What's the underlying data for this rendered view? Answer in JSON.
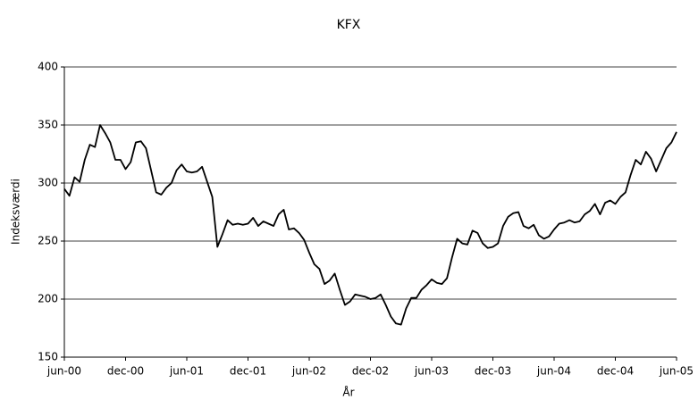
{
  "chart_data": {
    "type": "line",
    "title": "KFX",
    "x_label": "År",
    "y_label": "Indeksværdi",
    "categories": [
      "jun-00",
      null,
      null,
      null,
      null,
      null,
      null,
      null,
      null,
      null,
      null,
      null,
      "dec-00",
      null,
      null,
      null,
      null,
      null,
      null,
      null,
      null,
      null,
      null,
      null,
      "jun-01",
      null,
      null,
      null,
      null,
      null,
      null,
      null,
      null,
      null,
      null,
      null,
      "dec-01",
      null,
      null,
      null,
      null,
      null,
      null,
      null,
      null,
      null,
      null,
      null,
      "jun-02",
      null,
      null,
      null,
      null,
      null,
      null,
      null,
      null,
      null,
      null,
      null,
      "dec-02",
      null,
      null,
      null,
      null,
      null,
      null,
      null,
      null,
      null,
      null,
      null,
      "jun-03",
      null,
      null,
      null,
      null,
      null,
      null,
      null,
      null,
      null,
      null,
      null,
      "dec-03",
      null,
      null,
      null,
      null,
      null,
      null,
      null,
      null,
      null,
      null,
      null,
      "jun-04",
      null,
      null,
      null,
      null,
      null,
      null,
      null,
      null,
      null,
      null,
      null,
      "dec-04",
      null,
      null,
      null,
      null,
      null,
      null,
      null,
      null,
      null,
      null,
      null,
      "jun-05"
    ],
    "values": [
      295,
      289,
      305,
      301,
      320,
      333,
      331,
      350,
      343,
      335,
      320,
      320,
      312,
      318,
      335,
      336,
      330,
      311,
      292,
      290,
      296,
      300,
      311,
      316,
      310,
      309,
      310,
      314,
      301,
      288,
      245,
      256,
      268,
      264,
      265,
      264,
      265,
      270,
      263,
      267,
      265,
      263,
      273,
      277,
      260,
      261,
      257,
      251,
      240,
      230,
      226,
      213,
      216,
      222,
      208,
      195,
      198,
      204,
      203,
      202,
      200,
      201,
      204,
      195,
      185,
      179,
      178,
      192,
      201,
      201,
      208,
      212,
      217,
      214,
      213,
      218,
      236,
      252,
      248,
      247,
      259,
      257,
      248,
      244,
      245,
      248,
      263,
      271,
      274,
      275,
      263,
      261,
      264,
      255,
      252,
      254,
      260,
      265,
      266,
      268,
      266,
      267,
      273,
      276,
      282,
      273,
      283,
      285,
      282,
      288,
      292,
      307,
      320,
      316,
      327,
      321,
      310,
      320,
      330,
      335,
      344
    ],
    "color": "#000000",
    "ylim": [
      150,
      400
    ],
    "yticks": [
      150,
      200,
      250,
      300,
      350,
      400
    ],
    "grid": true
  }
}
